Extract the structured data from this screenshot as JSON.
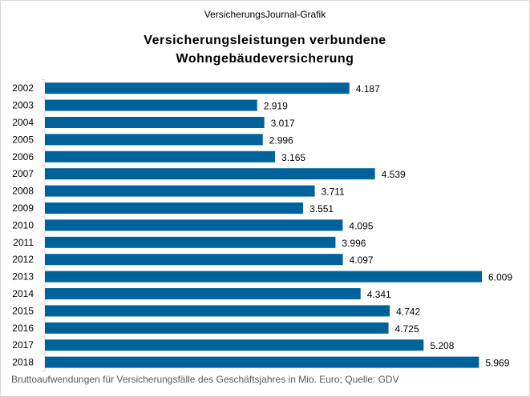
{
  "header": {
    "source": "VersicherungsJournal-Grafik"
  },
  "chart_data": {
    "type": "bar",
    "orientation": "horizontal",
    "title_lines": [
      "Versicherungsleistungen  verbundene",
      "Wohngebäudeversicherung"
    ],
    "categories": [
      "2002",
      "2003",
      "2004",
      "2005",
      "2006",
      "2007",
      "2008",
      "2009",
      "2010",
      "2011",
      "2012",
      "2013",
      "2014",
      "2015",
      "2016",
      "2017",
      "2018"
    ],
    "values": [
      4187,
      2919,
      3017,
      2996,
      3165,
      4539,
      3711,
      3551,
      4095,
      3996,
      4097,
      6009,
      4341,
      4742,
      4725,
      5208,
      5969
    ],
    "data_labels": [
      "4.187",
      "2.919",
      "3.017",
      "2.996",
      "3.165",
      "4.539",
      "3.711",
      "3.551",
      "4.095",
      "3.996",
      "4.097",
      "6.009",
      "4.341",
      "4.742",
      "4.725",
      "5.208",
      "5.969"
    ],
    "xlim": [
      0,
      6009
    ],
    "grid": false,
    "bar_color": "#00629B",
    "footnote": "Bruttoaufwendungen  für Versicherungsfälle  des Geschäftsjahres  in Mio. Euro; Quelle:  GDV"
  }
}
